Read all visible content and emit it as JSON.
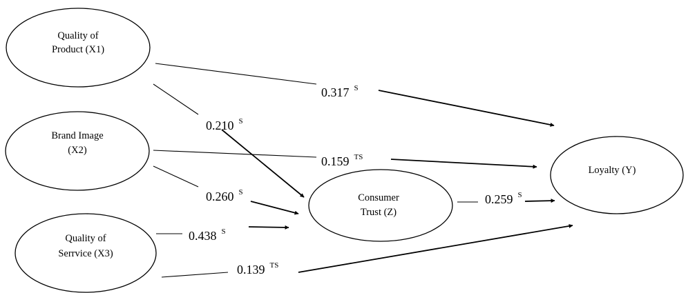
{
  "nodes": {
    "x1": {
      "lines": [
        "Quality of",
        "Product (X1)"
      ]
    },
    "x2": {
      "lines": [
        "Brand Image",
        "(X2)"
      ]
    },
    "x3": {
      "lines": [
        "Quality of",
        "Serrvice (X3)"
      ]
    },
    "z": {
      "lines": [
        "Consumer",
        "Trust (Z)"
      ]
    },
    "y": {
      "lines": [
        "Loyalty (Y)"
      ]
    }
  },
  "paths": [
    {
      "from": "Quality of Product (X1)",
      "to": "Loyalty (Y)",
      "coefficient": "0.317",
      "significance": "S"
    },
    {
      "from": "Quality of Product (X1)",
      "to": "Consumer Trust (Z)",
      "coefficient": "0.210",
      "significance": "S"
    },
    {
      "from": "Brand Image (X2)",
      "to": "Loyalty (Y)",
      "coefficient": "0.159",
      "significance": "TS"
    },
    {
      "from": "Brand Image (X2)",
      "to": "Consumer Trust (Z)",
      "coefficient": "0.260",
      "significance": "S"
    },
    {
      "from": "Quality of Serrvice (X3)",
      "to": "Consumer Trust (Z)",
      "coefficient": "0.438",
      "significance": "S"
    },
    {
      "from": "Consumer Trust (Z)",
      "to": "Loyalty (Y)",
      "coefficient": "0.259",
      "significance": "S"
    },
    {
      "from": "Quality of Serrvice (X3)",
      "to": "Loyalty (Y)",
      "coefficient": "0.139",
      "significance": "TS"
    }
  ]
}
